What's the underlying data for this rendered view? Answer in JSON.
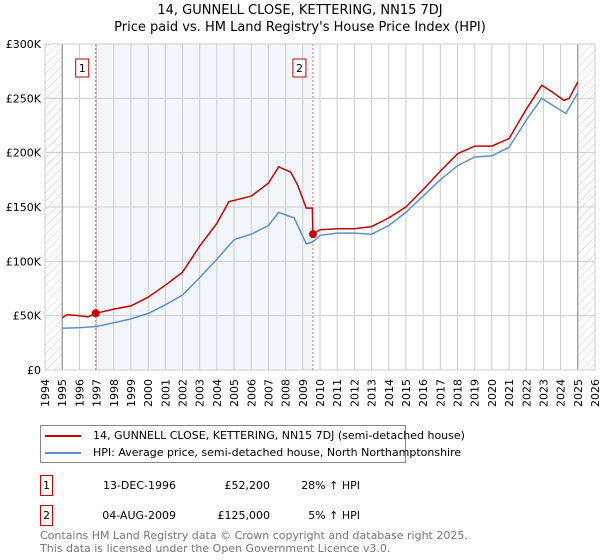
{
  "chart_data": {
    "type": "line",
    "title": "14, GUNNELL CLOSE, KETTERING, NN15 7DJ",
    "subtitle": "Price paid vs. HM Land Registry's House Price Index (HPI)",
    "xlim": [
      1994,
      2026
    ],
    "ylim": [
      0,
      300000
    ],
    "xticks": [
      "1994",
      "1995",
      "1996",
      "1997",
      "1998",
      "1999",
      "2000",
      "2001",
      "2002",
      "2003",
      "2004",
      "2005",
      "2006",
      "2007",
      "2008",
      "2009",
      "2010",
      "2011",
      "2012",
      "2013",
      "2014",
      "2015",
      "2016",
      "2017",
      "2018",
      "2019",
      "2020",
      "2021",
      "2022",
      "2023",
      "2024",
      "2025",
      "2026"
    ],
    "yticks": [
      {
        "v": 0,
        "label": "£0"
      },
      {
        "v": 50000,
        "label": "£50K"
      },
      {
        "v": 100000,
        "label": "£100K"
      },
      {
        "v": 150000,
        "label": "£150K"
      },
      {
        "v": 200000,
        "label": "£200K"
      },
      {
        "v": 250000,
        "label": "£250K"
      },
      {
        "v": 300000,
        "label": "£300K"
      }
    ],
    "grid": true,
    "series": [
      {
        "name": "14, GUNNELL CLOSE, KETTERING, NN15 7DJ (semi-detached house)",
        "color": "#cc0000",
        "x": [
          1995,
          1995.3,
          1996,
          1996.5,
          1996.95,
          1998,
          1999,
          2000,
          2001,
          2002,
          2003,
          2004,
          2004.7,
          2005.5,
          2006,
          2007,
          2007.6,
          2008.3,
          2008.7,
          2009.2,
          2009.55,
          2009.59,
          2010,
          2011,
          2012,
          2013,
          2014,
          2015,
          2016,
          2017,
          2018,
          2019,
          2020,
          2021,
          2022,
          2022.9,
          2023.5,
          2024.2,
          2024.5,
          2025
        ],
        "y": [
          48000,
          51000,
          50000,
          49000,
          52200,
          56000,
          59000,
          67000,
          78000,
          90000,
          114000,
          135000,
          155000,
          158000,
          160000,
          172000,
          187000,
          182000,
          170000,
          149000,
          149000,
          125000,
          129000,
          130000,
          130000,
          132000,
          140000,
          150000,
          166000,
          183000,
          199000,
          206000,
          206000,
          213000,
          240000,
          262000,
          256000,
          248000,
          250000,
          265000
        ]
      },
      {
        "name": "HPI: Average price, semi-detached house, North Northamptonshire",
        "color": "#5b8fd4",
        "x": [
          1995,
          1996,
          1997,
          1998,
          1999,
          2000,
          2001,
          2002,
          2003,
          2004,
          2005,
          2006,
          2007,
          2007.6,
          2008.5,
          2009.2,
          2009.6,
          2010,
          2011,
          2012,
          2013,
          2014,
          2015,
          2016,
          2017,
          2018,
          2019,
          2020,
          2021,
          2022,
          2022.9,
          2023.5,
          2024.3,
          2025
        ],
        "y": [
          38400,
          39000,
          40000,
          43500,
          47000,
          52000,
          60000,
          69000,
          85000,
          102000,
          120000,
          125000,
          133000,
          145000,
          140000,
          116000,
          118000,
          124000,
          126000,
          126000,
          125000,
          133000,
          145000,
          160000,
          175000,
          188000,
          196000,
          197000,
          205000,
          230000,
          250000,
          244000,
          236000,
          255000
        ]
      }
    ],
    "annotations": [
      {
        "label": "1",
        "x": 1996.95,
        "y": 52200
      },
      {
        "label": "2",
        "x": 2009.59,
        "y": 125000
      }
    ],
    "shaded_range": [
      1996.95,
      2009.59
    ],
    "data_range": [
      1995,
      2025
    ]
  },
  "legend": {
    "red": "14, GUNNELL CLOSE, KETTERING, NN15 7DJ (semi-detached house)",
    "blue": "HPI: Average price, semi-detached house, North Northamptonshire"
  },
  "sales": [
    {
      "num": "1",
      "date": "13-DEC-1996",
      "price": "£52,200",
      "hpi": "28% ↑ HPI"
    },
    {
      "num": "2",
      "date": "04-AUG-2009",
      "price": "£125,000",
      "hpi": "5% ↑ HPI"
    }
  ],
  "footer": [
    "Contains HM Land Registry data © Crown copyright and database right 2025.",
    "This data is licensed under the Open Government Licence v3.0."
  ]
}
